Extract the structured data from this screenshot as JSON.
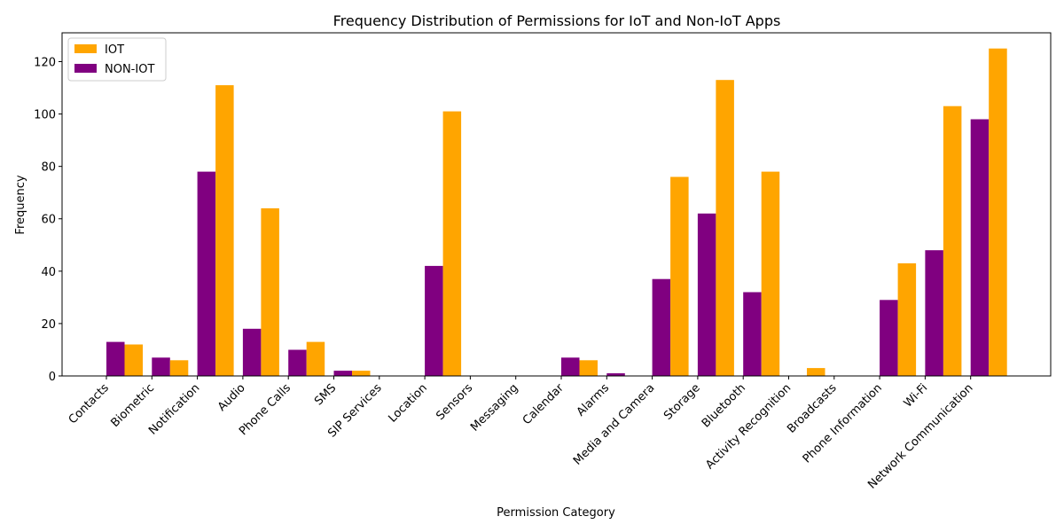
{
  "chart_data": {
    "type": "bar",
    "title": "Frequency Distribution of Permissions for IoT and Non-IoT Apps",
    "xlabel": "Permission Category",
    "ylabel": "Frequency",
    "ylim": [
      0,
      131
    ],
    "yticks": [
      0,
      20,
      40,
      60,
      80,
      100,
      120
    ],
    "grid": false,
    "legend_position": "top-left",
    "categories": [
      "Contacts",
      "Biometric",
      "Notification",
      "Audio",
      "Phone Calls",
      "SMS",
      "SIP Services",
      "Location",
      "Sensors",
      "Messaging",
      "Calendar",
      "Alarms",
      "Media and Camera",
      "Storage",
      "Bluetooth",
      "Activity Recognition",
      "Broadcasts",
      "Phone Information",
      "Wi-Fi",
      "Network Communication"
    ],
    "series": [
      {
        "name": "IOT",
        "color": "#FFA500",
        "values": [
          12,
          6,
          111,
          64,
          13,
          2,
          0,
          101,
          0,
          0,
          6,
          0,
          76,
          113,
          78,
          3,
          0,
          43,
          103,
          125
        ]
      },
      {
        "name": "NON-IOT",
        "color": "#800080",
        "values": [
          13,
          7,
          78,
          18,
          10,
          2,
          0,
          42,
          0,
          0,
          7,
          1,
          37,
          62,
          32,
          0,
          0,
          29,
          48,
          98
        ]
      }
    ]
  }
}
